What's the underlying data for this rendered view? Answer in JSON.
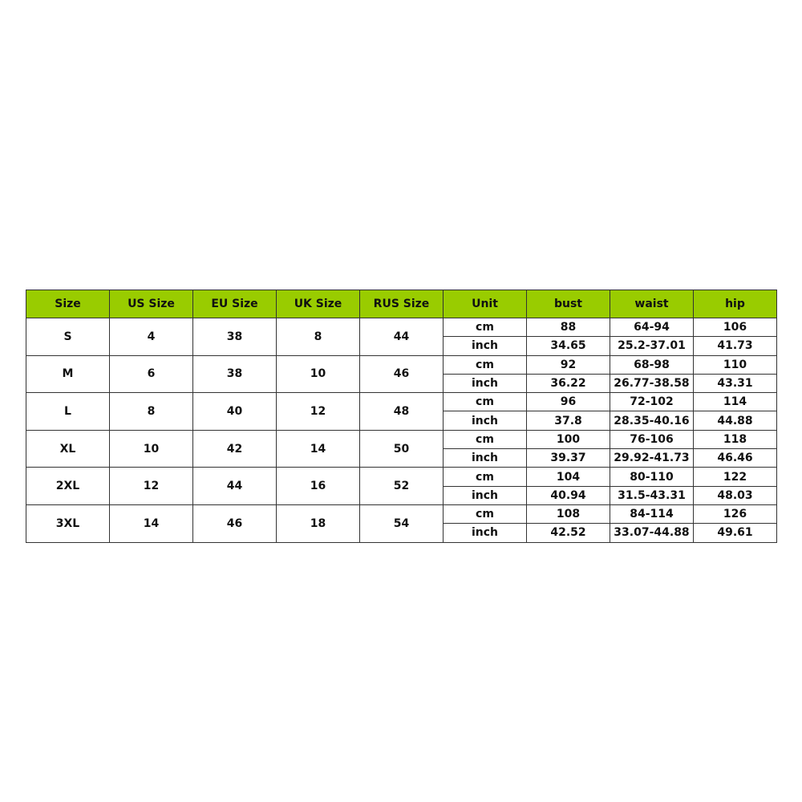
{
  "colors": {
    "header_bg": "#99cc00",
    "border": "#333333"
  },
  "headers": [
    "Size",
    "US Size",
    "EU Size",
    "UK Size",
    "RUS Size",
    "Unit",
    "bust",
    "waist",
    "hip"
  ],
  "rows": [
    {
      "size": "S",
      "us": "4",
      "eu": "38",
      "uk": "8",
      "rus": "44",
      "cm": {
        "unit": "cm",
        "bust": "88",
        "waist": "64-94",
        "hip": "106"
      },
      "inch": {
        "unit": "inch",
        "bust": "34.65",
        "waist": "25.2-37.01",
        "hip": "41.73"
      }
    },
    {
      "size": "M",
      "us": "6",
      "eu": "38",
      "uk": "10",
      "rus": "46",
      "cm": {
        "unit": "cm",
        "bust": "92",
        "waist": "68-98",
        "hip": "110"
      },
      "inch": {
        "unit": "inch",
        "bust": "36.22",
        "waist": "26.77-38.58",
        "hip": "43.31"
      }
    },
    {
      "size": "L",
      "us": "8",
      "eu": "40",
      "uk": "12",
      "rus": "48",
      "cm": {
        "unit": "cm",
        "bust": "96",
        "waist": "72-102",
        "hip": "114"
      },
      "inch": {
        "unit": "inch",
        "bust": "37.8",
        "waist": "28.35-40.16",
        "hip": "44.88"
      }
    },
    {
      "size": "XL",
      "us": "10",
      "eu": "42",
      "uk": "14",
      "rus": "50",
      "cm": {
        "unit": "cm",
        "bust": "100",
        "waist": "76-106",
        "hip": "118"
      },
      "inch": {
        "unit": "inch",
        "bust": "39.37",
        "waist": "29.92-41.73",
        "hip": "46.46"
      }
    },
    {
      "size": "2XL",
      "us": "12",
      "eu": "44",
      "uk": "16",
      "rus": "52",
      "cm": {
        "unit": "cm",
        "bust": "104",
        "waist": "80-110",
        "hip": "122"
      },
      "inch": {
        "unit": "inch",
        "bust": "40.94",
        "waist": "31.5-43.31",
        "hip": "48.03"
      }
    },
    {
      "size": "3XL",
      "us": "14",
      "eu": "46",
      "uk": "18",
      "rus": "54",
      "cm": {
        "unit": "cm",
        "bust": "108",
        "waist": "84-114",
        "hip": "126"
      },
      "inch": {
        "unit": "inch",
        "bust": "42.52",
        "waist": "33.07-44.88",
        "hip": "49.61"
      }
    }
  ]
}
